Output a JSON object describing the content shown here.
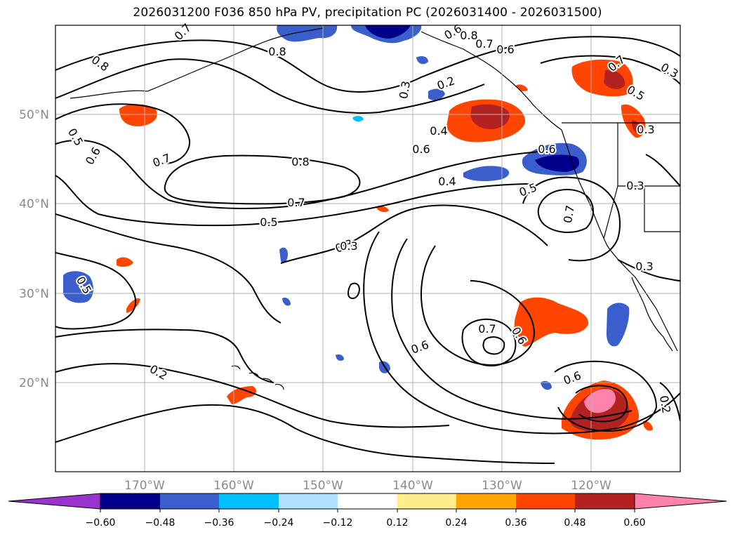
{
  "title": "2026031200 F036 850 hPa PV, precipitation PC (2026031400 - 2026031500)",
  "map": {
    "projection": "PlateCarree",
    "lon_range": [
      -180,
      -110
    ],
    "lat_range": [
      10,
      60
    ],
    "gridlines": true,
    "coastlines": true,
    "lon_ticks": [
      "170°W",
      "160°W",
      "150°W",
      "140°W",
      "130°W",
      "120°W"
    ],
    "lat_ticks": [
      "50°N",
      "40°N",
      "30°N",
      "20°N"
    ],
    "contour_variable": "850 hPa PV",
    "contour_labels": [
      {
        "text": "0.8"
      },
      {
        "text": "0.7"
      },
      {
        "text": "0.8"
      },
      {
        "text": "0.6"
      },
      {
        "text": "0.8"
      },
      {
        "text": "0.7"
      },
      {
        "text": "0.6"
      },
      {
        "text": "0.5"
      },
      {
        "text": "0.6"
      },
      {
        "text": "0.7"
      },
      {
        "text": "0.8"
      },
      {
        "text": "0.7"
      },
      {
        "text": "0.5"
      },
      {
        "text": "0.3"
      },
      {
        "text": "0.3"
      },
      {
        "text": "0.2"
      },
      {
        "text": "0.4"
      },
      {
        "text": "0.6"
      },
      {
        "text": "0.4"
      },
      {
        "text": "0.5"
      },
      {
        "text": "0.6"
      },
      {
        "text": "0.7"
      },
      {
        "text": "0.3"
      },
      {
        "text": "0.5"
      },
      {
        "text": "0.3"
      },
      {
        "text": "0.6"
      },
      {
        "text": "0.7"
      },
      {
        "text": "0.6"
      },
      {
        "text": "0.6"
      },
      {
        "text": "0.2"
      },
      {
        "text": "0.2"
      },
      {
        "text": "0.7"
      },
      {
        "text": "0.3"
      },
      {
        "text": "0.5"
      },
      {
        "text": "0.3"
      },
      {
        "text": "0.3"
      }
    ]
  },
  "colorbar": {
    "extend": "both",
    "ticks": [
      "−0.60",
      "−0.48",
      "−0.36",
      "−0.24",
      "−0.12",
      "0.12",
      "0.24",
      "0.36",
      "0.48",
      "0.60"
    ],
    "colors": [
      "#9a32cd",
      "#00008b",
      "#3a5fcd",
      "#00bfff",
      "#b0e2ff",
      "#ffffff",
      "#ffec8b",
      "#ffa500",
      "#ff4500",
      "#b22222",
      "#ff82ab"
    ]
  }
}
